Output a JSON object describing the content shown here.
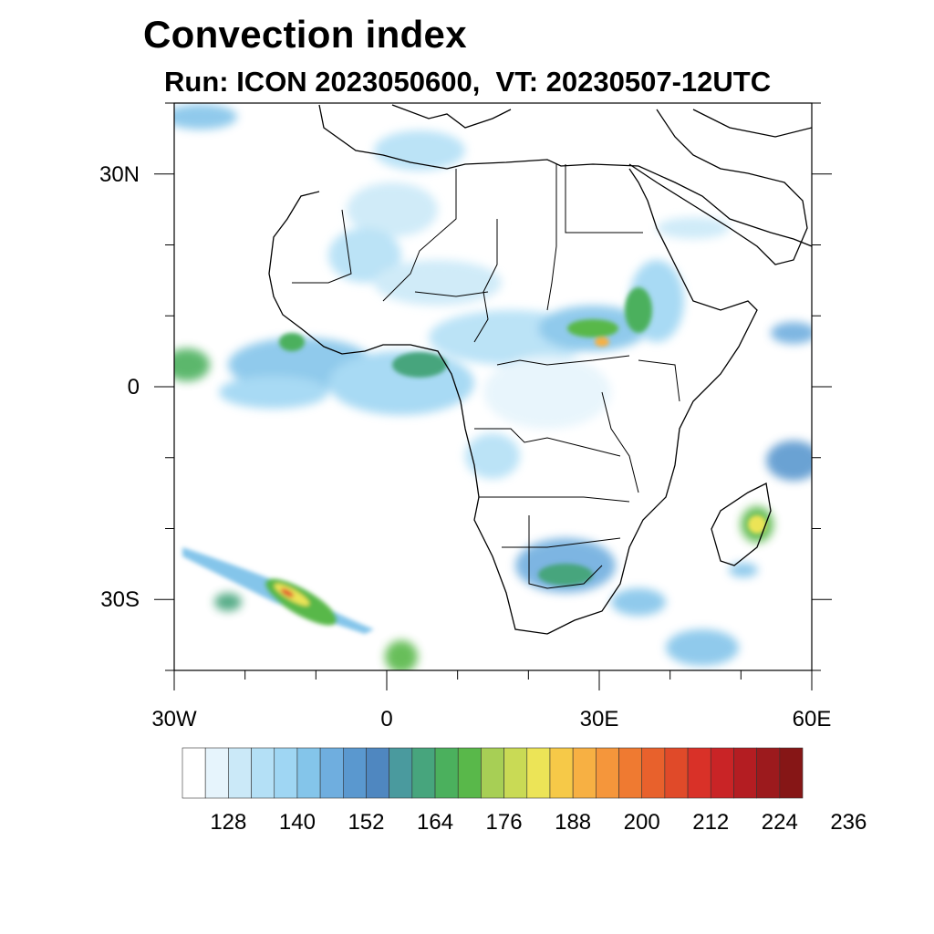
{
  "title": "Convection index",
  "subtitle": "Run: ICON 2023050600,  VT: 20230507-12UTC",
  "map": {
    "lon_range": [
      -30,
      60
    ],
    "lat_range": [
      -40,
      40
    ],
    "lat_labels": [
      "30N",
      "0",
      "30S"
    ],
    "lon_labels": [
      "30W",
      "0",
      "30E",
      "60E"
    ]
  },
  "colorbar": {
    "colors": [
      "#ffffff",
      "#e6f4fc",
      "#cbe9f8",
      "#b4e0f6",
      "#9fd6f3",
      "#84c5ea",
      "#6faedf",
      "#5a98cf",
      "#4f87c0",
      "#4a9a9e",
      "#47a57d",
      "#4bb05d",
      "#59b84a",
      "#a7cf55",
      "#c9da55",
      "#ece457",
      "#f6c948",
      "#f7b043",
      "#f5963b",
      "#ef7a31",
      "#e8612c",
      "#e04a29",
      "#d93128",
      "#c92426",
      "#b41d22",
      "#9c1a1d",
      "#861616"
    ],
    "labels": [
      "128",
      "140",
      "152",
      "164",
      "176",
      "188",
      "200",
      "212",
      "224",
      "236"
    ]
  }
}
